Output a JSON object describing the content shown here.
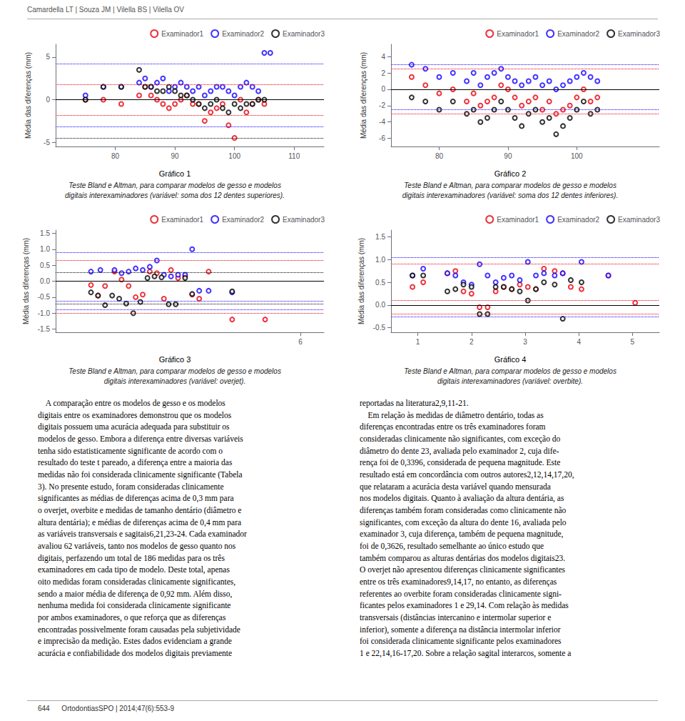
{
  "page_title": "Camardella LT | Souza JM | Vilella BS | Vilella OV",
  "chart_data": [
    {
      "type": "scatter",
      "title": "Gráfico 1",
      "subtitle": "Teste Bland e Altman, para comparar modelos de gesso e modelos\ndigitais interexaminadores (variável: soma dos 12 dentes superiores).",
      "ylabel": "Média das diferenças (mm)",
      "xlim": [
        70,
        115
      ],
      "xticks": [
        80,
        90,
        100,
        110
      ],
      "ylim": [
        -5.5,
        6.5
      ],
      "yticks": [
        -5,
        0,
        5
      ],
      "grid": false,
      "legend": "upper right",
      "reference_lines": [
        {
          "y": 0.0,
          "color": "#000000",
          "line_style": "solid"
        },
        {
          "y": 4.2,
          "color": "#1400ff",
          "line_style": "dotted"
        },
        {
          "y": -3.2,
          "color": "#1400ff",
          "line_style": "dotted"
        },
        {
          "y": 1.8,
          "color": "#e8000d",
          "line_style": "dotted"
        },
        {
          "y": -1.8,
          "color": "#e8000d",
          "line_style": "dotted"
        },
        {
          "y": -4.5,
          "color": "#000000",
          "line_style": "dotted"
        }
      ],
      "series": [
        {
          "name": "Examinador1",
          "color": "#e8000d",
          "marker": "open_circle",
          "x": [
            75,
            78,
            81,
            84,
            85,
            86,
            87,
            88,
            89,
            90,
            91,
            92,
            93,
            94,
            95,
            96,
            97,
            98,
            99,
            100,
            101,
            102,
            103,
            104,
            105
          ],
          "y": [
            0.0,
            0.0,
            -0.5,
            0.5,
            1.5,
            0.5,
            0.0,
            -0.5,
            -1.0,
            -0.5,
            0.0,
            0.5,
            -0.5,
            -0.5,
            -2.5,
            -1.5,
            -1.0,
            -0.5,
            -3.0,
            -4.5,
            0.0,
            -1.5,
            -0.5,
            0.0,
            -0.5
          ]
        },
        {
          "name": "Examinador2",
          "color": "#1400ff",
          "marker": "open_circle",
          "x": [
            75,
            78,
            81,
            84,
            85,
            86,
            87,
            88,
            89,
            90,
            91,
            92,
            93,
            94,
            95,
            96,
            97,
            98,
            99,
            100,
            101,
            102,
            103,
            104,
            105,
            106
          ],
          "y": [
            0.5,
            1.5,
            1.5,
            2.0,
            2.5,
            1.5,
            2.0,
            2.5,
            1.0,
            1.5,
            2.0,
            1.5,
            1.0,
            1.5,
            0.5,
            1.0,
            1.5,
            1.5,
            1.0,
            0.5,
            1.5,
            2.0,
            1.5,
            1.0,
            5.5,
            5.5
          ]
        },
        {
          "name": "Examinador3",
          "color": "#000000",
          "marker": "open_circle",
          "x": [
            75,
            78,
            81,
            84,
            85,
            86,
            87,
            88,
            89,
            90,
            91,
            92,
            93,
            94,
            95,
            96,
            97,
            98,
            99,
            100,
            101,
            102,
            103,
            104,
            105
          ],
          "y": [
            0.0,
            1.5,
            1.5,
            3.5,
            1.5,
            1.5,
            1.0,
            1.0,
            1.5,
            1.0,
            0.5,
            0.5,
            0.0,
            -0.5,
            -1.0,
            -0.5,
            0.0,
            -1.0,
            -1.5,
            -0.5,
            -1.0,
            -0.5,
            -0.5,
            0.0,
            0.0
          ]
        }
      ]
    },
    {
      "type": "scatter",
      "title": "Gráfico 2",
      "subtitle": "Teste Bland e Altman, para comparar modelos de gesso e modelos\ndigitais interexaminadores (variável: soma dos 12 dentes inferiores).",
      "ylabel": "Média das diferenças (mm)",
      "xlim": [
        73,
        112
      ],
      "xticks": [
        80,
        90,
        100
      ],
      "ylim": [
        -7.0,
        5.5
      ],
      "yticks": [
        -6,
        -4,
        -2,
        0,
        2,
        4
      ],
      "grid": false,
      "legend": "upper right",
      "reference_lines": [
        {
          "y": 0.0,
          "color": "#000000",
          "line_style": "solid"
        },
        {
          "y": 3.0,
          "color": "#1400ff",
          "line_style": "dotted"
        },
        {
          "y": -2.5,
          "color": "#1400ff",
          "line_style": "dotted"
        },
        {
          "y": 2.5,
          "color": "#e8000d",
          "line_style": "dotted"
        },
        {
          "y": -3.0,
          "color": "#e8000d",
          "line_style": "dotted"
        }
      ],
      "series": [
        {
          "name": "Examinador1",
          "color": "#e8000d",
          "marker": "open_circle",
          "x": [
            76,
            78,
            80,
            82,
            84,
            85,
            86,
            87,
            88,
            89,
            90,
            91,
            92,
            93,
            94,
            95,
            96,
            97,
            98,
            99,
            100,
            101,
            102,
            103
          ],
          "y": [
            1.5,
            0.5,
            -0.5,
            0.0,
            -1.5,
            -0.5,
            -2.0,
            -1.5,
            -1.0,
            0.5,
            0.0,
            -1.0,
            -2.0,
            -1.5,
            -1.0,
            -2.5,
            -1.5,
            -3.0,
            -2.5,
            -2.0,
            -1.0,
            0.0,
            -1.5,
            -1.0
          ]
        },
        {
          "name": "Examinador2",
          "color": "#1400ff",
          "marker": "open_circle",
          "x": [
            76,
            78,
            80,
            82,
            84,
            85,
            86,
            87,
            88,
            89,
            90,
            91,
            92,
            93,
            94,
            95,
            96,
            97,
            98,
            99,
            100,
            101,
            102,
            103
          ],
          "y": [
            3.0,
            2.5,
            1.5,
            2.0,
            1.0,
            2.0,
            0.5,
            1.5,
            2.0,
            2.5,
            1.5,
            1.0,
            0.5,
            1.0,
            1.5,
            0.5,
            1.0,
            0.0,
            0.5,
            1.0,
            1.5,
            2.0,
            1.5,
            1.0
          ]
        },
        {
          "name": "Examinador3",
          "color": "#000000",
          "marker": "open_circle",
          "x": [
            76,
            78,
            80,
            82,
            84,
            85,
            86,
            87,
            88,
            89,
            90,
            91,
            92,
            93,
            94,
            95,
            96,
            97,
            98,
            99,
            100,
            101,
            102,
            103
          ],
          "y": [
            -1.0,
            -1.5,
            -2.5,
            -1.5,
            -3.0,
            -2.5,
            -4.0,
            -3.5,
            -2.5,
            -1.5,
            -2.5,
            -3.5,
            -4.5,
            -3.0,
            -2.5,
            -4.0,
            -3.5,
            -5.5,
            -4.5,
            -3.5,
            -2.5,
            -1.5,
            -3.0,
            -2.5
          ]
        }
      ]
    },
    {
      "type": "scatter",
      "title": "Gráfico 3",
      "subtitle": "Teste Bland e Altman, para comparar modelos de gesso e modelos\ndigitais interexaminadores (variável: overjet).",
      "ylabel": "Média das diferenças (mm)",
      "xlim": [
        0.8,
        6.5
      ],
      "xticks": [
        6
      ],
      "ylim": [
        -1.6,
        1.6
      ],
      "yticks": [
        -1.5,
        {
          "value": -1.0,
          "label": "-1.0"
        },
        -0.5,
        {
          "value": 0.0,
          "label": "0.0"
        },
        0.5,
        {
          "value": 1.0,
          "label": "1.0"
        },
        1.5
      ],
      "grid": false,
      "legend": "upper right",
      "reference_lines": [
        {
          "y": 0.0,
          "color": "#000000",
          "line_style": "solid"
        },
        {
          "y": 0.9,
          "color": "#1400ff",
          "line_style": "dotted"
        },
        {
          "y": 0.28,
          "color": "#1400ff",
          "line_style": "dotted"
        },
        {
          "y": -0.63,
          "color": "#1400ff",
          "line_style": "dotted"
        },
        {
          "y": -0.9,
          "color": "#1400ff",
          "line_style": "dotted"
        },
        {
          "y": 0.65,
          "color": "#e8000d",
          "line_style": "dotted"
        },
        {
          "y": -1.0,
          "color": "#e8000d",
          "line_style": "dotted"
        },
        {
          "y": 0.28,
          "color": "#000000",
          "line_style": "dotted"
        },
        {
          "y": -0.72,
          "color": "#000000",
          "line_style": "dotted"
        }
      ],
      "series": [
        {
          "name": "Examinador1",
          "color": "#e8000d",
          "marker": "open_circle",
          "x": [
            1.55,
            1.7,
            1.85,
            2.05,
            2.2,
            2.35,
            2.5,
            2.65,
            2.8,
            2.95,
            3.1,
            3.25,
            3.4,
            3.55,
            3.7,
            3.85,
            4.05,
            4.55,
            5.25
          ],
          "y": [
            -0.12,
            -0.45,
            -0.15,
            0.3,
            0.05,
            -0.15,
            -0.5,
            -0.42,
            0.3,
            0.25,
            -0.55,
            0.35,
            0.1,
            0.15,
            -0.42,
            -0.55,
            0.3,
            -1.2,
            -1.2
          ]
        },
        {
          "name": "Examinador2",
          "color": "#1400ff",
          "marker": "open_circle",
          "x": [
            1.55,
            1.75,
            2.05,
            2.2,
            2.35,
            2.5,
            2.65,
            2.8,
            2.95,
            3.1,
            3.25,
            3.4,
            3.55,
            3.7,
            3.85,
            4.05,
            4.55
          ],
          "y": [
            0.3,
            0.35,
            0.35,
            0.25,
            0.3,
            0.4,
            0.35,
            0.45,
            0.65,
            0.2,
            0.15,
            0.2,
            0.2,
            1.0,
            -0.3,
            -0.3,
            -0.35
          ]
        },
        {
          "name": "Examinador3",
          "color": "#000000",
          "marker": "open_circle",
          "x": [
            1.55,
            1.7,
            1.85,
            2.0,
            2.15,
            2.3,
            2.45,
            2.6,
            2.75,
            2.9,
            3.05,
            3.2,
            3.35,
            3.55,
            3.7,
            4.55
          ],
          "y": [
            -0.35,
            -0.45,
            -0.75,
            -0.45,
            -0.55,
            -0.7,
            -1.0,
            -0.65,
            0.1,
            0.15,
            0.12,
            -0.72,
            -0.72,
            0.1,
            -0.4,
            -0.32
          ]
        }
      ]
    },
    {
      "type": "scatter",
      "title": "Gráfico 4",
      "subtitle": "Teste Bland e Altman, para comparar modelos de gesso e modelos\ndigitais interexaminadores (variável: overbite).",
      "ylabel": "Média das diferenças (mm)",
      "xlim": [
        0.5,
        5.5
      ],
      "xticks": [
        1,
        2,
        3,
        4,
        5
      ],
      "ylim": [
        -0.6,
        1.65
      ],
      "yticks": [
        -0.5,
        {
          "value": 0.0,
          "label": "0.0"
        },
        0.5,
        {
          "value": 1.0,
          "label": "1.0"
        },
        1.5
      ],
      "grid": false,
      "legend": "upper right",
      "reference_lines": [
        {
          "y": 0.0,
          "color": "#000000",
          "line_style": "solid"
        },
        {
          "y": 1.05,
          "color": "#1400ff",
          "line_style": "dotted"
        },
        {
          "y": 0.1,
          "color": "#1400ff",
          "line_style": "dotted"
        },
        {
          "y": -0.25,
          "color": "#1400ff",
          "line_style": "dotted"
        },
        {
          "y": 0.9,
          "color": "#e8000d",
          "line_style": "dotted"
        },
        {
          "y": 0.1,
          "color": "#e8000d",
          "line_style": "dotted"
        },
        {
          "y": -0.2,
          "color": "#e8000d",
          "line_style": "dotted"
        }
      ],
      "series": [
        {
          "name": "Examinador1",
          "color": "#e8000d",
          "marker": "open_circle",
          "x": [
            0.9,
            1.1,
            1.55,
            1.7,
            1.85,
            2.0,
            2.15,
            2.3,
            2.45,
            2.6,
            2.75,
            2.9,
            3.05,
            3.2,
            3.35,
            3.55,
            3.7,
            3.85,
            4.05,
            4.55,
            5.05
          ],
          "y": [
            0.4,
            0.5,
            0.7,
            0.75,
            0.3,
            0.25,
            -0.05,
            -0.05,
            0.3,
            0.4,
            0.35,
            0.45,
            0.4,
            0.35,
            0.8,
            0.75,
            0.7,
            0.4,
            0.35,
            0.65,
            0.05
          ]
        },
        {
          "name": "Examinador2",
          "color": "#1400ff",
          "marker": "open_circle",
          "x": [
            0.9,
            1.1,
            1.55,
            1.7,
            1.85,
            2.0,
            2.15,
            2.3,
            2.45,
            2.6,
            2.75,
            2.9,
            3.05,
            3.2,
            3.35,
            3.55,
            3.7,
            4.05,
            4.55
          ],
          "y": [
            0.65,
            0.8,
            0.7,
            0.65,
            0.5,
            0.45,
            0.9,
            0.65,
            0.5,
            0.6,
            0.65,
            0.55,
            0.95,
            0.65,
            0.7,
            0.65,
            0.7,
            0.95,
            0.65
          ]
        },
        {
          "name": "Examinador3",
          "color": "#000000",
          "marker": "open_circle",
          "x": [
            0.9,
            1.1,
            1.55,
            1.7,
            1.85,
            2.0,
            2.15,
            2.3,
            2.45,
            2.6,
            2.75,
            2.9,
            3.05,
            3.2,
            3.35,
            3.55,
            3.7,
            3.85,
            4.05
          ],
          "y": [
            0.65,
            0.65,
            0.3,
            0.35,
            0.45,
            0.4,
            -0.2,
            -0.2,
            0.4,
            0.4,
            0.35,
            0.3,
            0.1,
            0.35,
            0.5,
            0.45,
            -0.3,
            0.55,
            0.5
          ]
        }
      ]
    }
  ],
  "body_left": "    A comparação entre os modelos de gesso e os modelos\ndigitais entre os examinadores demonstrou que os modelos\ndigitais possuem uma acurácia adequada para substituir os\nmodelos de gesso. Embora a diferença entre diversas variáveis\ntenha sido estatisticamente significante de acordo com o\nresultado do teste t pareado, a diferença entre a maioria das\nmedidas não foi considerada clinicamente significante (Tabela\n3). No presente estudo, foram consideradas clinicamente\nsignificantes as médias de diferenças acima de 0,3 mm para\no overjet, overbite e medidas de tamanho dentário (diâmetro e\naltura dentária); e médias de diferenças acima de 0,4 mm para\nas variáveis transversais e sagitais6,21,23-24. Cada examinador\navaliou 62 variáveis, tanto nos modelos de gesso quanto nos\ndigitais, perfazendo um total de 186 medidas para os três\nexaminadores em cada tipo de modelo. Deste total, apenas\noito medidas foram consideradas clinicamente significantes,\nsendo a maior média de diferença de 0,92 mm. Além disso,\nnenhuma medida foi considerada clinicamente significante\npor ambos examinadores, o que reforça que as diferenças\nencontradas possivelmente foram causadas pela subjetividade\ne imprecisão da medição. Estes dados evidenciam a grande\nacurácia e confiabilidade dos modelos digitais previamente",
  "body_right": "reportadas na literatura2,9,11-21.\n    Em relação às medidas de diâmetro dentário, todas as\ndiferenças encontradas entre os três examinadores foram\nconsideradas clinicamente não significantes, com exceção do\ndiâmetro do dente 23, avaliada pelo examinador 2, cuja dife-\nrença foi de 0,3396, considerada de pequena magnitude. Este\nresultado está em concordância com outros autores2,12,14,17,20,\nque relataram a acurácia desta variável quando mensurada\nnos modelos digitais. Quanto à avaliação da altura dentária, as\ndiferenças também foram consideradas como clinicamente não\nsignificantes, com exceção da altura do dente 16, avaliada pelo\nexaminador 3, cuja diferença, também de pequena magnitude,\nfoi de 0,3626, resultado semelhante ao único estudo que\ntambém comparou as alturas dentárias dos modelos digitais23.\nO overjet não apresentou diferenças clinicamente significantes\nentre os três examinadores9,14,17, no entanto, as diferenças\nreferentes ao overbite foram consideradas clinicamente signi-\nficantes pelos examinadores 1 e 29,14. Com relação às medidas\ntransversais (distâncias intercanino e intermolar superior e\ninferior), somente a diferença na distância intermolar inferior\nfoi considerada clinicamente significante pelos examinadores\n1 e 22,14,16-17,20. Sobre a relação sagital interarcos, somente a",
  "page_footer": "644      OrtodontiasSPO | 2014;47(6):553-9"
}
